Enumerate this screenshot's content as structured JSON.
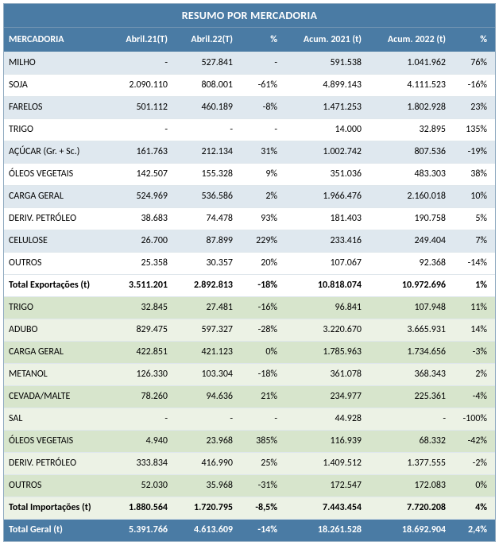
{
  "colors": {
    "header_bg": "#4a7ba4",
    "exp_even": "#dfe8ef",
    "exp_odd": "#ffffff",
    "imp_even": "#d7e5cc",
    "imp_odd": "#ecf2e5",
    "grand_bg": "#4a7ba4",
    "border": "#dfe7ec"
  },
  "title": "RESUMO POR MERCADORIA",
  "columns": [
    "MERCADORIA",
    "Abril.21(T)",
    "Abril.22(T)",
    "%",
    "Acum. 2021 (t)",
    "Acum. 2022 (t)",
    "%"
  ],
  "column_align": [
    "left",
    "right",
    "right",
    "right",
    "right",
    "right",
    "right"
  ],
  "export_rows": [
    {
      "label": "MILHO",
      "a21": "-",
      "a22": "527.841",
      "pct": "-",
      "c21": "591.538",
      "c22": "1.041.962",
      "cpct": "76%"
    },
    {
      "label": "SOJA",
      "a21": "2.090.110",
      "a22": "808.001",
      "pct": "-61%",
      "c21": "4.899.143",
      "c22": "4.111.523",
      "cpct": "-16%"
    },
    {
      "label": "FARELOS",
      "a21": "501.112",
      "a22": "460.189",
      "pct": "-8%",
      "c21": "1.471.253",
      "c22": "1.802.928",
      "cpct": "23%"
    },
    {
      "label": "TRIGO",
      "a21": "-",
      "a22": "-",
      "pct": "-",
      "c21": "14.000",
      "c22": "32.895",
      "cpct": "135%"
    },
    {
      "label": "AÇÚCAR (Gr. + Sc.)",
      "a21": "161.763",
      "a22": "212.134",
      "pct": "31%",
      "c21": "1.002.742",
      "c22": "807.536",
      "cpct": "-19%"
    },
    {
      "label": "ÓLEOS VEGETAIS",
      "a21": "142.507",
      "a22": "155.328",
      "pct": "9%",
      "c21": "351.036",
      "c22": "483.303",
      "cpct": "38%"
    },
    {
      "label": "CARGA GERAL",
      "a21": "524.969",
      "a22": "536.586",
      "pct": "2%",
      "c21": "1.966.476",
      "c22": "2.160.018",
      "cpct": "10%"
    },
    {
      "label": "DERIV. PETRÓLEO",
      "a21": "38.683",
      "a22": "74.478",
      "pct": "93%",
      "c21": "181.403",
      "c22": "190.758",
      "cpct": "5%"
    },
    {
      "label": "CELULOSE",
      "a21": "26.700",
      "a22": "87.899",
      "pct": "229%",
      "c21": "233.416",
      "c22": "249.404",
      "cpct": "7%"
    },
    {
      "label": "OUTROS",
      "a21": "25.358",
      "a22": "30.357",
      "pct": "20%",
      "c21": "107.067",
      "c22": "92.368",
      "cpct": "-14%"
    }
  ],
  "export_total": {
    "label": "Total Exportações (t)",
    "a21": "3.511.201",
    "a22": "2.892.813",
    "pct": "-18%",
    "c21": "10.818.074",
    "c22": "10.972.696",
    "cpct": "1%"
  },
  "import_rows": [
    {
      "label": "TRIGO",
      "a21": "32.845",
      "a22": "27.481",
      "pct": "-16%",
      "c21": "96.841",
      "c22": "107.948",
      "cpct": "11%"
    },
    {
      "label": "ADUBO",
      "a21": "829.475",
      "a22": "597.327",
      "pct": "-28%",
      "c21": "3.220.670",
      "c22": "3.665.931",
      "cpct": "14%"
    },
    {
      "label": "CARGA GERAL",
      "a21": "422.851",
      "a22": "421.123",
      "pct": "0%",
      "c21": "1.785.963",
      "c22": "1.734.656",
      "cpct": "-3%"
    },
    {
      "label": "METANOL",
      "a21": "126.330",
      "a22": "103.304",
      "pct": "-18%",
      "c21": "361.078",
      "c22": "368.343",
      "cpct": "2%"
    },
    {
      "label": "CEVADA/MALTE",
      "a21": "78.260",
      "a22": "94.636",
      "pct": "21%",
      "c21": "234.977",
      "c22": "225.361",
      "cpct": "-4%"
    },
    {
      "label": "SAL",
      "a21": "-",
      "a22": "-",
      "pct": "-",
      "c21": "44.928",
      "c22": "-",
      "cpct": "-100%"
    },
    {
      "label": "ÓLEOS VEGETAIS",
      "a21": "4.940",
      "a22": "23.968",
      "pct": "385%",
      "c21": "116.939",
      "c22": "68.332",
      "cpct": "-42%"
    },
    {
      "label": "DERIV. PETRÓLEO",
      "a21": "333.834",
      "a22": "416.990",
      "pct": "25%",
      "c21": "1.409.512",
      "c22": "1.377.555",
      "cpct": "-2%"
    },
    {
      "label": "OUTROS",
      "a21": "52.030",
      "a22": "35.968",
      "pct": "-31%",
      "c21": "172.547",
      "c22": "172.083",
      "cpct": "0%"
    }
  ],
  "import_total": {
    "label": "Total Importações (t)",
    "a21": "1.880.564",
    "a22": "1.720.795",
    "pct": "-8,5%",
    "c21": "7.443.454",
    "c22": "7.720.208",
    "cpct": "4%"
  },
  "grand_total": {
    "label": "Total Geral (t)",
    "a21": "5.391.766",
    "a22": "4.613.609",
    "pct": "-14%",
    "c21": "18.261.528",
    "c22": "18.692.904",
    "cpct": "2,4%"
  }
}
